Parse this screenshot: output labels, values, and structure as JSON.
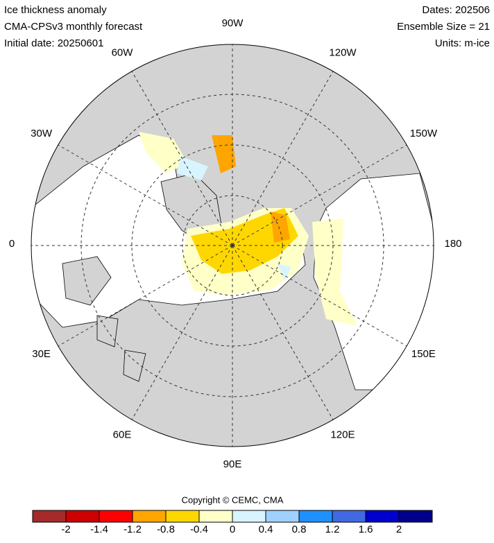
{
  "header": {
    "left": [
      "Ice thickness anomaly",
      "CMA-CPSv3 monthly forecast",
      "Initial date: 20250601"
    ],
    "right": [
      "Dates: 202506",
      "Ensemble Size = 21",
      "Units: m-ice"
    ]
  },
  "map": {
    "longitude_labels": [
      "90W",
      "120W",
      "150W",
      "180",
      "150E",
      "120E",
      "90E",
      "60E",
      "30E",
      "0",
      "30W",
      "60W"
    ]
  },
  "copyright": "Copyright © CEMC, CMA",
  "colorbar": {
    "colors": [
      "#a52a2a",
      "#cd0000",
      "#ff0000",
      "#ffa500",
      "#ffd700",
      "#ffffc8",
      "#d8f4ff",
      "#a0d0ff",
      "#1e90ff",
      "#4169e1",
      "#0000cd",
      "#00008b"
    ],
    "labels": [
      "-2",
      "-1.4",
      "-1.2",
      "-0.8",
      "-0.4",
      "0",
      "0.4",
      "0.8",
      "1.2",
      "1.6",
      "2"
    ]
  }
}
